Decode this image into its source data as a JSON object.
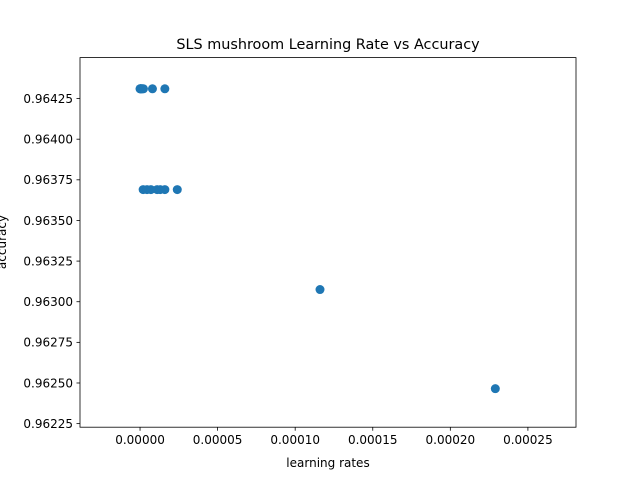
{
  "chart_data": {
    "type": "scatter",
    "title": "SLS mushroom Learning Rate vs Accuracy",
    "xlabel": "learning rates",
    "ylabel": "accuracy",
    "xlim": [
      -3.87e-05,
      0.000281
    ],
    "ylim": [
      0.962228,
      0.964502
    ],
    "x_ticks": [
      0.0,
      5e-05,
      0.0001,
      0.00015,
      0.0002,
      0.00025
    ],
    "x_tick_labels": [
      "0.00000",
      "0.00005",
      "0.00010",
      "0.00015",
      "0.00020",
      "0.00025"
    ],
    "y_ticks": [
      0.96225,
      0.9625,
      0.96275,
      0.963,
      0.96325,
      0.9635,
      0.96375,
      0.964,
      0.96425
    ],
    "y_tick_labels": [
      "0.96225",
      "0.96250",
      "0.96275",
      "0.96300",
      "0.96325",
      "0.96350",
      "0.96375",
      "0.96400",
      "0.96425"
    ],
    "grid": false,
    "color": "#1f77b4",
    "points": [
      {
        "x": 0.0,
        "y": 0.96431
      },
      {
        "x": 1e-07,
        "y": 0.96431
      },
      {
        "x": 3e-07,
        "y": 0.96431
      },
      {
        "x": 5e-07,
        "y": 0.96431
      },
      {
        "x": 8e-07,
        "y": 0.96431
      },
      {
        "x": 1.2e-06,
        "y": 0.96431
      },
      {
        "x": 1.6e-06,
        "y": 0.96431
      },
      {
        "x": 2.2e-06,
        "y": 0.96431
      },
      {
        "x": 8e-06,
        "y": 0.96431
      },
      {
        "x": 1.6e-05,
        "y": 0.96431
      },
      {
        "x": 2e-06,
        "y": 0.96369
      },
      {
        "x": 4.5e-06,
        "y": 0.96369
      },
      {
        "x": 7e-06,
        "y": 0.96369
      },
      {
        "x": 1.1e-05,
        "y": 0.96369
      },
      {
        "x": 1.3e-05,
        "y": 0.96369
      },
      {
        "x": 1.6e-05,
        "y": 0.96369
      },
      {
        "x": 2.4e-05,
        "y": 0.96369
      },
      {
        "x": 0.000116,
        "y": 0.963075
      },
      {
        "x": 0.000229,
        "y": 0.962465
      }
    ]
  }
}
